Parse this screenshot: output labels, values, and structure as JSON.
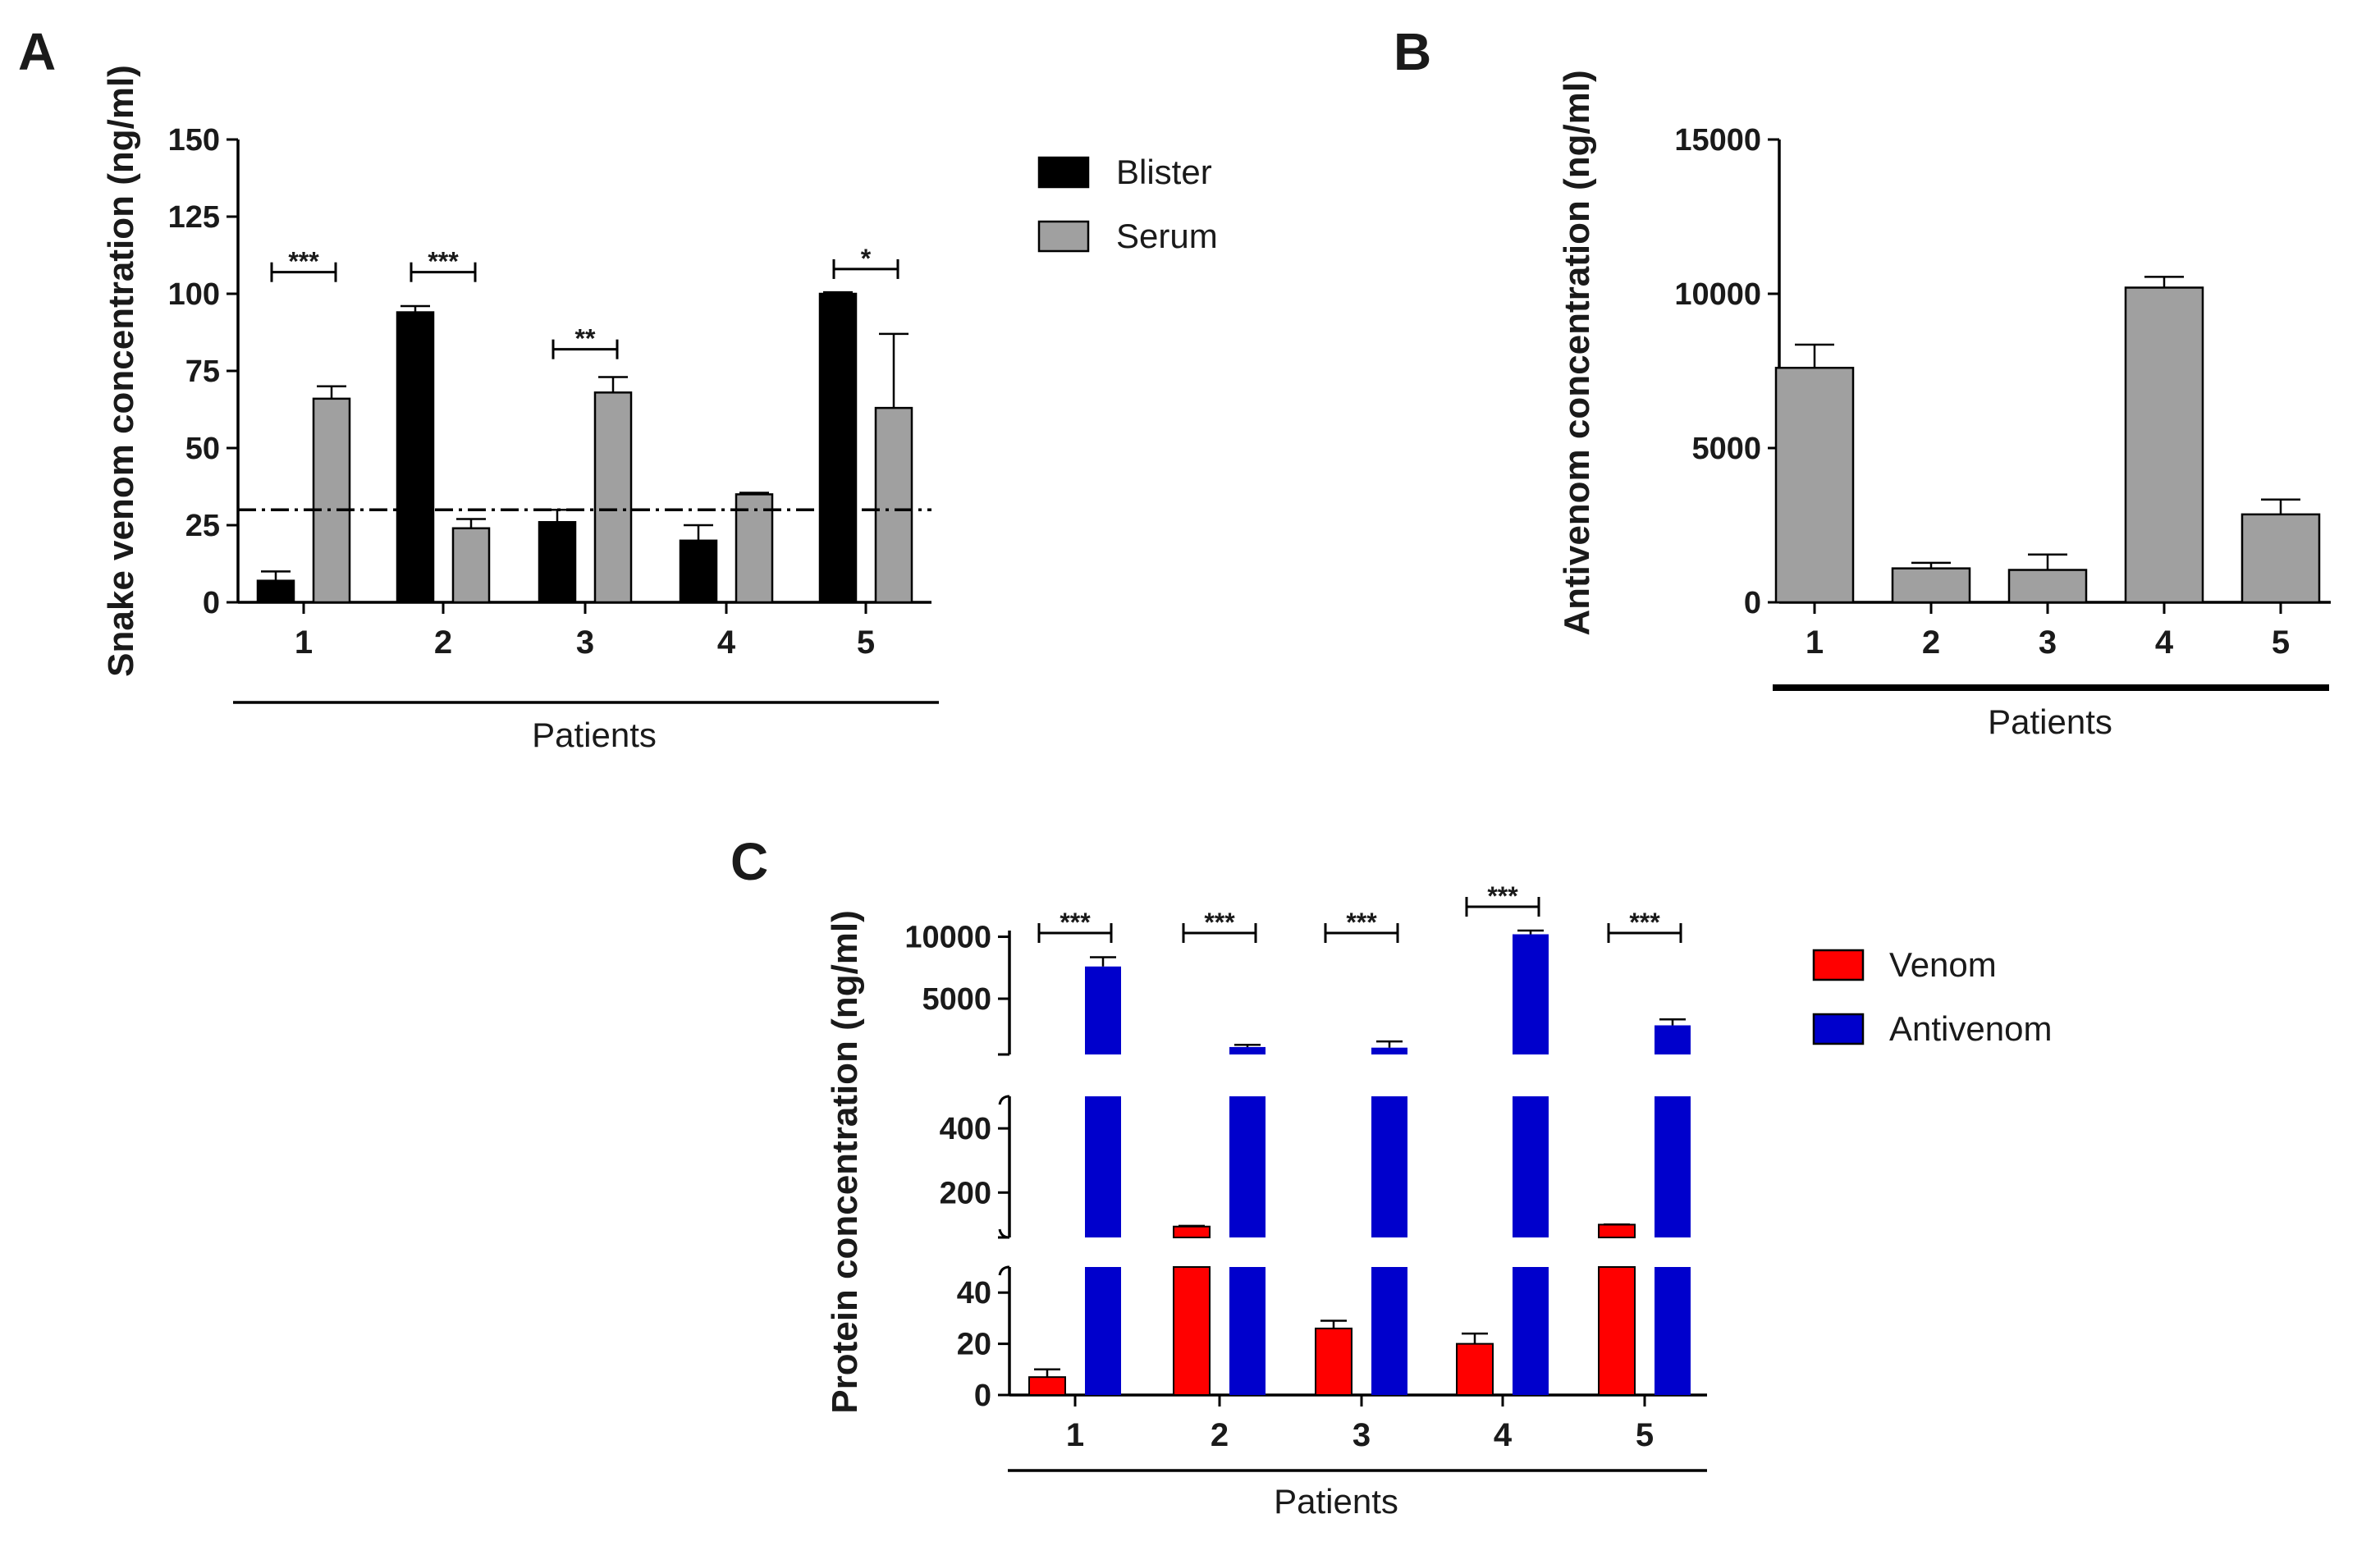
{
  "chart_data": [
    {
      "panel": "A",
      "type": "bar",
      "categories": [
        "1",
        "2",
        "3",
        "4",
        "5"
      ],
      "series": [
        {
          "name": "Blister",
          "color": "#000000",
          "values": [
            7,
            94,
            26,
            20,
            100
          ],
          "errors": [
            3,
            2,
            4,
            5,
            0.5
          ]
        },
        {
          "name": "Serum",
          "color": "#a0a0a0",
          "values": [
            66,
            24,
            68,
            35,
            63
          ],
          "errors": [
            4,
            3,
            5,
            0.5,
            24
          ]
        }
      ],
      "ylabel": "Snake venom concentration (ng/ml)",
      "xlabel": "Patients",
      "ylim": [
        0,
        150
      ],
      "yticks": [
        0,
        25,
        50,
        75,
        100,
        125,
        150
      ],
      "reference_line": 30,
      "significance": [
        {
          "category": "1",
          "label": "***",
          "y": 107
        },
        {
          "category": "2",
          "label": "***",
          "y": 107
        },
        {
          "category": "3",
          "label": "**",
          "y": 82
        },
        {
          "category": "5",
          "label": "*",
          "y": 108
        }
      ]
    },
    {
      "panel": "B",
      "type": "bar",
      "categories": [
        "1",
        "2",
        "3",
        "4",
        "5"
      ],
      "series": [
        {
          "name": "Antivenom",
          "color": "#a0a0a0",
          "values": [
            7600,
            1100,
            1050,
            10200,
            2850
          ],
          "errors": [
            750,
            180,
            500,
            350,
            480
          ]
        }
      ],
      "ylabel": "Antivenom concentration (ng/ml)",
      "xlabel": "Patients",
      "ylim": [
        0,
        15000
      ],
      "yticks": [
        0,
        5000,
        10000,
        15000
      ]
    },
    {
      "panel": "C",
      "type": "bar",
      "categories": [
        "1",
        "2",
        "3",
        "4",
        "5"
      ],
      "series": [
        {
          "name": "Venom",
          "color": "#ff0000",
          "values": [
            7,
            94,
            26,
            20,
            100
          ],
          "errors": [
            3,
            2,
            3,
            4,
            0.5
          ]
        },
        {
          "name": "Antivenom",
          "color": "#0000cc",
          "values": [
            7600,
            1100,
            1050,
            10200,
            2850
          ],
          "errors": [
            750,
            180,
            500,
            350,
            480
          ]
        }
      ],
      "ylabel": "Protein concentration (ng/ml)",
      "xlabel": "Patients",
      "broken_axis_segments": [
        {
          "range": [
            0,
            50
          ],
          "ticks": [
            0,
            20,
            40
          ]
        },
        {
          "range": [
            60,
            500
          ],
          "ticks": [
            200,
            400
          ]
        },
        {
          "range": [
            500,
            10500
          ],
          "ticks": [
            5000,
            10000
          ]
        }
      ],
      "significance": [
        {
          "category": "1",
          "label": "***"
        },
        {
          "category": "2",
          "label": "***"
        },
        {
          "category": "3",
          "label": "***"
        },
        {
          "category": "4",
          "label": "***"
        },
        {
          "category": "5",
          "label": "***"
        }
      ]
    }
  ],
  "panel_labels": {
    "a": "A",
    "b": "B",
    "c": "C"
  }
}
